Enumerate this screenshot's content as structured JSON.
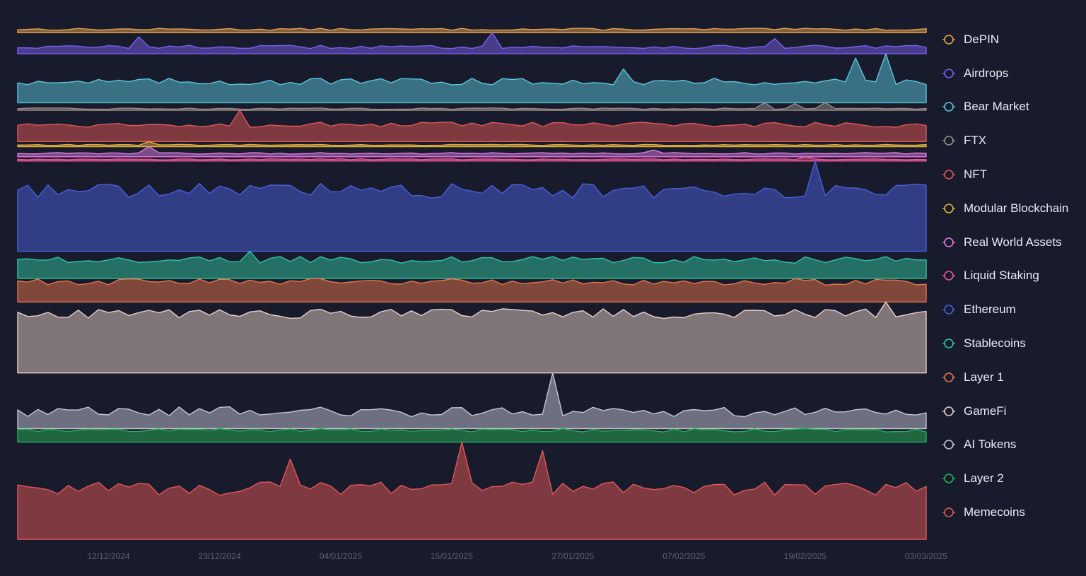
{
  "chart_data": {
    "type": "area",
    "x_start": "2024-12-03",
    "x_end": "2025-03-03",
    "x_tick_labels": [
      "12/12/2024",
      "23/12/2024",
      "04/01/2025",
      "15/01/2025",
      "27/01/2025",
      "07/02/2025",
      "19/02/2025",
      "03/03/2025"
    ],
    "x_tick_dates": [
      "2024-12-12",
      "2024-12-23",
      "2025-01-04",
      "2025-01-15",
      "2025-01-27",
      "2025-02-07",
      "2025-02-19",
      "2025-03-03"
    ],
    "legend_position": "right",
    "grid": false,
    "series": [
      {
        "name": "DePIN",
        "color": "#e8a14c",
        "base": 4,
        "amp": 1.2,
        "spikes": []
      },
      {
        "name": "Airdrops",
        "color": "#7b5ef0",
        "base": 8,
        "amp": 2.0,
        "spikes": [
          [
            12,
            12
          ],
          [
            47,
            17
          ],
          [
            75,
            10
          ]
        ]
      },
      {
        "name": "Bear Market",
        "color": "#5bc5dc",
        "base": 25,
        "amp": 4.0,
        "spikes": [
          [
            60,
            15
          ],
          [
            83,
            28
          ],
          [
            86,
            33
          ]
        ]
      },
      {
        "name": "FTX",
        "color": "#9c8c88",
        "base": 2,
        "amp": 0.8,
        "spikes": [
          [
            74,
            7
          ],
          [
            77,
            6
          ],
          [
            80,
            7
          ]
        ]
      },
      {
        "name": "NFT",
        "color": "#e45757",
        "base": 20,
        "amp": 3.0,
        "spikes": [
          [
            22,
            17
          ]
        ]
      },
      {
        "name": "Modular Blockchain",
        "color": "#e5b23c",
        "base": 2,
        "amp": 0.6,
        "spikes": [
          [
            13,
            4
          ]
        ]
      },
      {
        "name": "Real World Assets",
        "color": "#e07ae4",
        "base": 4,
        "amp": 1.0,
        "spikes": [
          [
            13,
            8
          ],
          [
            63,
            4
          ]
        ]
      },
      {
        "name": "Liquid Staking",
        "color": "#f0579a",
        "base": 2,
        "amp": 0.6,
        "spikes": [
          [
            78,
            3
          ]
        ]
      },
      {
        "name": "Ethereum",
        "color": "#4a5fe0",
        "base": 72,
        "amp": 9.0,
        "spikes": [
          [
            79,
            35
          ]
        ]
      },
      {
        "name": "Stablecoins",
        "color": "#2fc5a0",
        "base": 22,
        "amp": 4.0,
        "spikes": [
          [
            23,
            10
          ]
        ]
      },
      {
        "name": "Layer 1",
        "color": "#e8744c",
        "base": 24,
        "amp": 4.0,
        "spikes": []
      },
      {
        "name": "GameFi",
        "color": "#e8cfc8",
        "base": 70,
        "amp": 6.0,
        "spikes": [
          [
            86,
            14
          ]
        ]
      },
      {
        "name": "AI Tokens",
        "color": "#c3c6d6",
        "base": 20,
        "amp": 6.0,
        "spikes": [
          [
            53,
            46
          ]
        ]
      },
      {
        "name": "Layer 2",
        "color": "#25b258",
        "base": 14,
        "amp": 2.0,
        "spikes": []
      },
      {
        "name": "Memecoins",
        "color": "#e45757",
        "base": 60,
        "amp": 8.0,
        "spikes": [
          [
            27,
            35
          ],
          [
            44,
            55
          ],
          [
            52,
            45
          ]
        ]
      }
    ]
  }
}
